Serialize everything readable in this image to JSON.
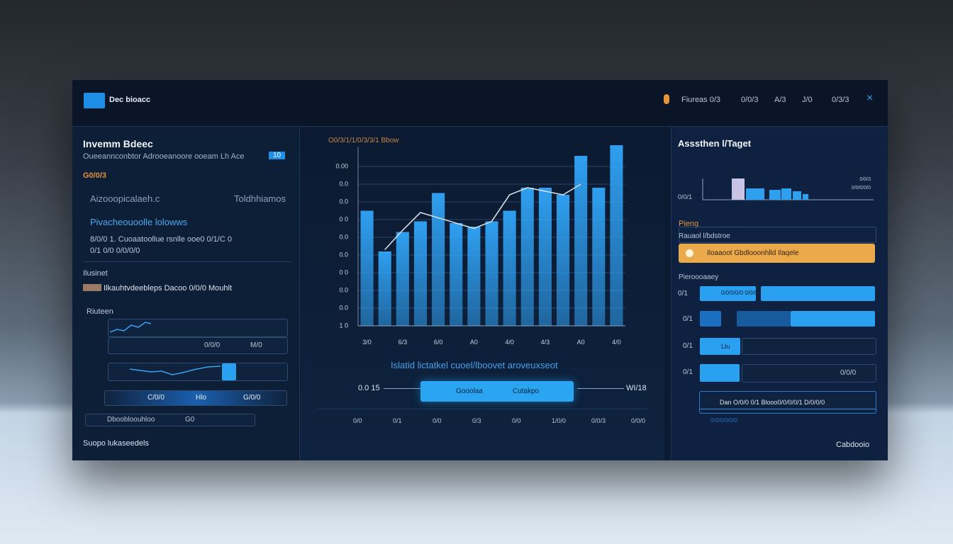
{
  "header": {
    "logo_text": "Dec bioacc",
    "nav": [
      "Fiureas 0/3",
      "0/0/3",
      "A/3",
      "J/0",
      "0/3/3"
    ],
    "close": "×"
  },
  "left_panel": {
    "title": "Invemm Bdeec",
    "subtitle": "Oueeannconbtor Adrooeanoore ooeam Lh Ace",
    "badge": "10",
    "amount": "G0/0/3",
    "row_label": "Aizooopicalaeh.c",
    "row_value": "Toldhhiamos",
    "section": "Pivacheouoolle lolowws",
    "detail_1": "8/0/0 1. Cuoaatoollue rsnlle ooe0 0/1/C 0",
    "detail_2": "0/1 0/0 0/0/0/0",
    "group": "Ilusinet",
    "group_line": "Ilkauhtvdeebleps Dacoo 0/0/0 Mouhlt",
    "list_title": "Riuteen",
    "row_a": "0/0/0",
    "row_b": "M/0",
    "slider_labels": [
      "C/0/0",
      "Hlo",
      "G/0/0"
    ],
    "select_text": "Dboobloouhloo",
    "select_value": "G0",
    "footer": "Suopo lukaseedels"
  },
  "main_chart": {
    "type": "bar",
    "title": "O0/3/1/1/0/3/3/1 Bbow",
    "categories": [
      "3/0",
      null,
      "6/3",
      null,
      "6/0",
      null,
      "A0",
      null,
      "4/0",
      null,
      "4/3",
      null,
      "A0",
      null,
      "4/0"
    ],
    "series": [
      {
        "type": "bar",
        "color": "#2f9ff0",
        "values": [
          6.5,
          4.2,
          5.3,
          5.9,
          7.5,
          5.8,
          5.6,
          5.9,
          6.5,
          7.8,
          7.8,
          7.4,
          9.6,
          7.8,
          10.2
        ]
      },
      {
        "type": "line",
        "color": "#d6dce6",
        "values": [
          null,
          4.3,
          5.4,
          6.4,
          6.1,
          5.8,
          5.5,
          5.9,
          7.4,
          7.8,
          7.6,
          7.4,
          8.0,
          null,
          null
        ]
      }
    ],
    "ylim": [
      0,
      10.5
    ],
    "yticks": [
      {
        "value": 0,
        "label": "1 0"
      },
      {
        "value": 1,
        "label": "0.0"
      },
      {
        "value": 2,
        "label": "0.0"
      },
      {
        "value": 3,
        "label": "0 0"
      },
      {
        "value": 4,
        "label": "0.0"
      },
      {
        "value": 5,
        "label": "0.0"
      },
      {
        "value": 6,
        "label": "0 0"
      },
      {
        "value": 7,
        "label": "0.0"
      },
      {
        "value": 8,
        "label": "0.0"
      },
      {
        "value": 9,
        "label": "0.00"
      }
    ],
    "grid": true,
    "caption": "Islatid lictatkel cuoel/lboovet aroveuxseot",
    "range_start": "0.0 15",
    "range_end": "WI/18",
    "range_buttons": [
      "Gooolaa",
      "Cutakpo"
    ],
    "footer_labels": [
      "0/0",
      "0/1",
      "0/0",
      "0/3",
      "0/0",
      "1/0/0",
      "0/0/3",
      "0/0/0"
    ]
  },
  "right_panel": {
    "title": "Asssthen l/Taget",
    "mini_chart": {
      "type": "bar",
      "label": "0/0/1",
      "values": [
        30,
        16,
        14,
        16,
        12,
        8
      ],
      "color": "#2f9ff0",
      "highlight": "#c9c3e6",
      "ylim": [
        0,
        34
      ],
      "legend": [
        "0/0/3",
        "0/0/0/0/0"
      ]
    },
    "section": "Pieng",
    "input_label": "Rauaol l/bdstroe",
    "button": "Iloaaoot Gbdlooonhlld Ilaqele",
    "list_title": "Pieroooaaey",
    "rows": [
      "0/1",
      "0/1",
      "0/1",
      "0/1"
    ],
    "row_texts": [
      "0/0/0/0/0 0/0/0 0/0/0/0",
      "Ltu",
      "0/0/0"
    ],
    "bottom_box": "Dan O/0/0   0/1      Blooo0/0/0/0/1   D/0/0/0",
    "bottom_note": "0/0/0/0/0/0",
    "footer": "Cabdooio"
  }
}
